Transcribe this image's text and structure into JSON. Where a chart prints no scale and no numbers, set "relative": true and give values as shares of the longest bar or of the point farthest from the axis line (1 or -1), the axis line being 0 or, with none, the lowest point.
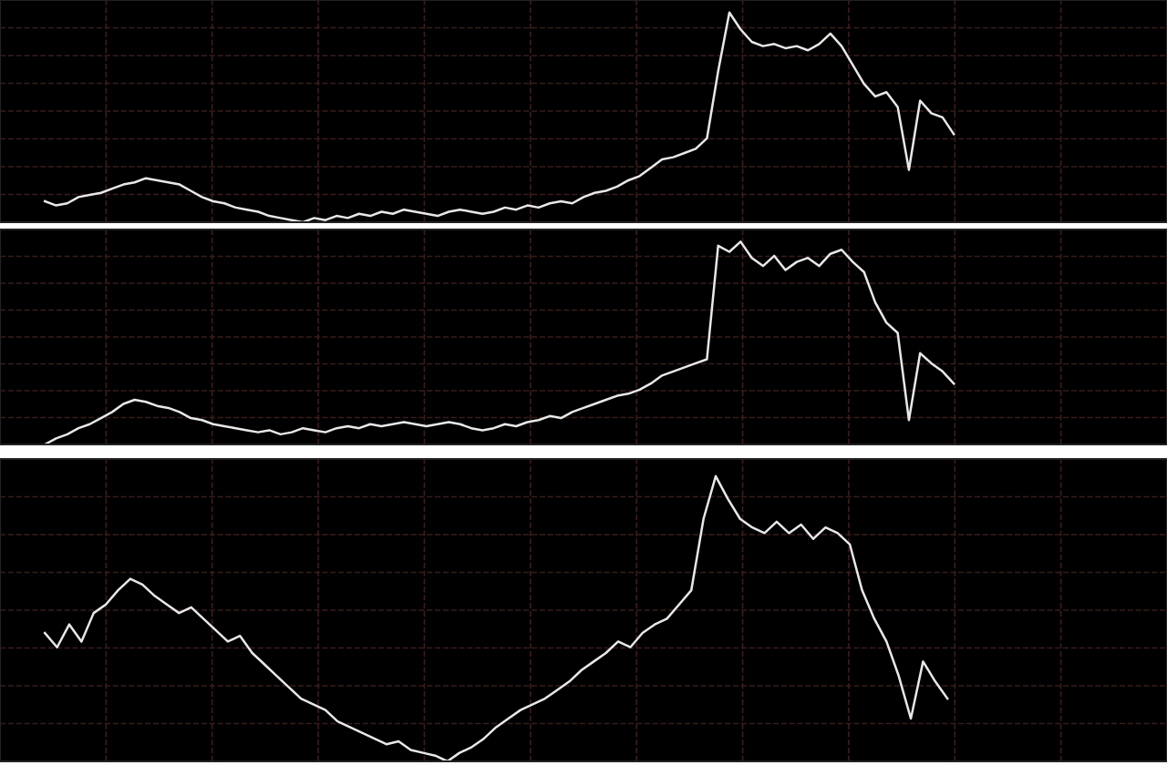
{
  "chart_data": [
    {
      "type": "line",
      "relative": true,
      "grid": true,
      "tick_labels": false,
      "categories": [
        null,
        null,
        null,
        null,
        null,
        null,
        null,
        null,
        null,
        null,
        null,
        null,
        null,
        null,
        null,
        null,
        null,
        null,
        null,
        null,
        null,
        null,
        null,
        null,
        null,
        null,
        null,
        null,
        null,
        null,
        null,
        null,
        null,
        null,
        null,
        null,
        null,
        null,
        null,
        null,
        null,
        null,
        null,
        null,
        null,
        null,
        null,
        null,
        null,
        null,
        null,
        null,
        null,
        null,
        null,
        null,
        null,
        null,
        null,
        null,
        null,
        null,
        null,
        null,
        null,
        null,
        null,
        null,
        null,
        null,
        null,
        null,
        null,
        null,
        null,
        null,
        null,
        null,
        null,
        null,
        null,
        null,
        null,
        null,
        null,
        null,
        null,
        null,
        null,
        null,
        null,
        null,
        null,
        null,
        null,
        null,
        null,
        null,
        null,
        null
      ],
      "series": [
        {
          "color": "#e8e8e8",
          "values": [
            0.1,
            0.08,
            0.09,
            0.12,
            0.13,
            0.14,
            0.16,
            0.18,
            0.19,
            0.21,
            0.2,
            0.19,
            0.18,
            0.15,
            0.12,
            0.1,
            0.09,
            0.07,
            0.06,
            0.05,
            0.03,
            0.02,
            0.01,
            0.0,
            0.02,
            0.01,
            0.03,
            0.02,
            0.04,
            0.03,
            0.05,
            0.04,
            0.06,
            0.05,
            0.04,
            0.03,
            0.05,
            0.06,
            0.05,
            0.04,
            0.05,
            0.07,
            0.06,
            0.08,
            0.07,
            0.09,
            0.1,
            0.09,
            0.12,
            0.14,
            0.15,
            0.17,
            0.2,
            0.22,
            0.26,
            0.3,
            0.31,
            0.33,
            0.35,
            0.4,
            0.72,
            1.0,
            0.92,
            0.86,
            0.84,
            0.85,
            0.83,
            0.84,
            0.82,
            0.85,
            0.9,
            0.84,
            0.75,
            0.66,
            0.6,
            0.62,
            0.55,
            0.25,
            0.58,
            0.52,
            0.5,
            0.42,
            null,
            null,
            null,
            null,
            null,
            null,
            null,
            null,
            null,
            null,
            null,
            null,
            null,
            null,
            null,
            null,
            null,
            null
          ]
        }
      ]
    },
    {
      "type": "line",
      "relative": true,
      "grid": true,
      "tick_labels": false,
      "categories": [
        null,
        null,
        null,
        null,
        null,
        null,
        null,
        null,
        null,
        null,
        null,
        null,
        null,
        null,
        null,
        null,
        null,
        null,
        null,
        null,
        null,
        null,
        null,
        null,
        null,
        null,
        null,
        null,
        null,
        null,
        null,
        null,
        null,
        null,
        null,
        null,
        null,
        null,
        null,
        null,
        null,
        null,
        null,
        null,
        null,
        null,
        null,
        null,
        null,
        null,
        null,
        null,
        null,
        null,
        null,
        null,
        null,
        null,
        null,
        null,
        null,
        null,
        null,
        null,
        null,
        null,
        null,
        null,
        null,
        null,
        null,
        null,
        null,
        null,
        null,
        null,
        null,
        null,
        null,
        null,
        null,
        null,
        null,
        null,
        null,
        null,
        null,
        null,
        null,
        null,
        null,
        null,
        null,
        null,
        null,
        null,
        null,
        null,
        null,
        null
      ],
      "series": [
        {
          "color": "#e8e8e8",
          "values": [
            0.0,
            0.03,
            0.05,
            0.08,
            0.1,
            0.13,
            0.16,
            0.2,
            0.22,
            0.21,
            0.19,
            0.18,
            0.16,
            0.13,
            0.12,
            0.1,
            0.09,
            0.08,
            0.07,
            0.06,
            0.07,
            0.05,
            0.06,
            0.08,
            0.07,
            0.06,
            0.08,
            0.09,
            0.08,
            0.1,
            0.09,
            0.1,
            0.11,
            0.1,
            0.09,
            0.1,
            0.11,
            0.1,
            0.08,
            0.07,
            0.08,
            0.1,
            0.09,
            0.11,
            0.12,
            0.14,
            0.13,
            0.16,
            0.18,
            0.2,
            0.22,
            0.24,
            0.25,
            0.27,
            0.3,
            0.34,
            0.36,
            0.38,
            0.4,
            0.42,
            0.98,
            0.95,
            1.0,
            0.92,
            0.88,
            0.93,
            0.86,
            0.9,
            0.92,
            0.88,
            0.94,
            0.96,
            0.9,
            0.85,
            0.7,
            0.6,
            0.55,
            0.12,
            0.45,
            0.4,
            0.36,
            0.3,
            null,
            null,
            null,
            null,
            null,
            null,
            null,
            null,
            null,
            null,
            null,
            null,
            null,
            null,
            null,
            null,
            null,
            null
          ]
        }
      ]
    },
    {
      "type": "line",
      "relative": true,
      "grid": true,
      "tick_labels": false,
      "categories": [
        null,
        null,
        null,
        null,
        null,
        null,
        null,
        null,
        null,
        null,
        null,
        null,
        null,
        null,
        null,
        null,
        null,
        null,
        null,
        null,
        null,
        null,
        null,
        null,
        null,
        null,
        null,
        null,
        null,
        null,
        null,
        null,
        null,
        null,
        null,
        null,
        null,
        null,
        null,
        null,
        null,
        null,
        null,
        null,
        null,
        null,
        null,
        null,
        null,
        null,
        null,
        null,
        null,
        null,
        null,
        null,
        null,
        null,
        null,
        null,
        null,
        null,
        null,
        null,
        null,
        null,
        null,
        null,
        null,
        null,
        null,
        null,
        null,
        null,
        null,
        null,
        null,
        null,
        null,
        null,
        null,
        null,
        null,
        null,
        null,
        null,
        null,
        null,
        null,
        null,
        null,
        null
      ],
      "series": [
        {
          "color": "#e8e8e8",
          "values": [
            0.45,
            0.4,
            0.48,
            0.42,
            0.52,
            0.55,
            0.6,
            0.64,
            0.62,
            0.58,
            0.55,
            0.52,
            0.54,
            0.5,
            0.46,
            0.42,
            0.44,
            0.38,
            0.34,
            0.3,
            0.26,
            0.22,
            0.2,
            0.18,
            0.14,
            0.12,
            0.1,
            0.08,
            0.06,
            0.07,
            0.04,
            0.03,
            0.02,
            0.0,
            0.03,
            0.05,
            0.08,
            0.12,
            0.15,
            0.18,
            0.2,
            0.22,
            0.25,
            0.28,
            0.32,
            0.35,
            0.38,
            0.42,
            0.4,
            0.45,
            0.48,
            0.5,
            0.55,
            0.6,
            0.85,
            1.0,
            0.92,
            0.85,
            0.82,
            0.8,
            0.84,
            0.8,
            0.83,
            0.78,
            0.82,
            0.8,
            0.76,
            0.6,
            0.5,
            0.42,
            0.3,
            0.15,
            0.35,
            0.28,
            0.22,
            null,
            null,
            null,
            null,
            null,
            null,
            null,
            null,
            null,
            null,
            null,
            null,
            null,
            null,
            null,
            null,
            null
          ]
        }
      ]
    }
  ]
}
